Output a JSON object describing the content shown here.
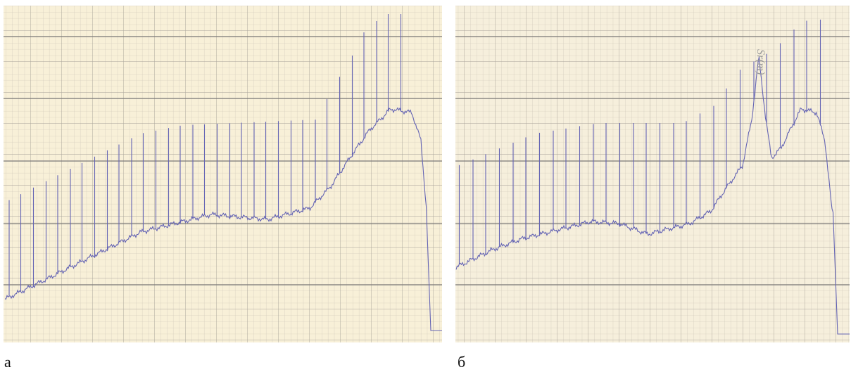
{
  "panels": [
    {
      "label": "а"
    },
    {
      "label": "б",
      "annotation": "Sr(m)"
    }
  ]
}
